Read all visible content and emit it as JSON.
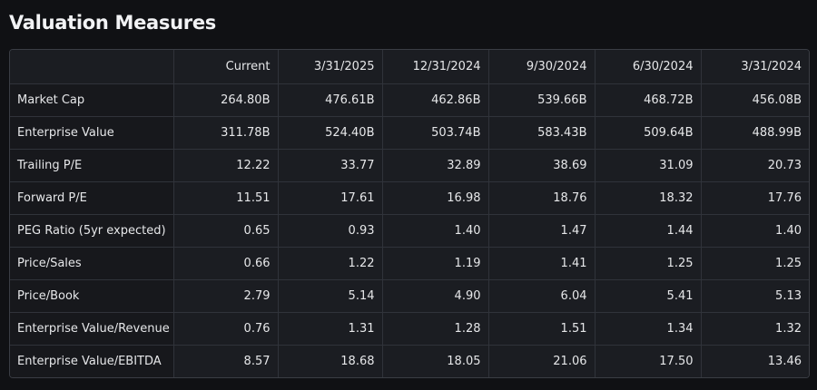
{
  "title": "Valuation Measures",
  "columns": [
    "Current",
    "3/31/2025",
    "12/31/2024",
    "9/30/2024",
    "6/30/2024",
    "3/31/2024"
  ],
  "rows": [
    {
      "label": "Market Cap",
      "values": [
        "264.80B",
        "476.61B",
        "462.86B",
        "539.66B",
        "468.72B",
        "456.08B"
      ]
    },
    {
      "label": "Enterprise Value",
      "values": [
        "311.78B",
        "524.40B",
        "503.74B",
        "583.43B",
        "509.64B",
        "488.99B"
      ]
    },
    {
      "label": "Trailing P/E",
      "values": [
        "12.22",
        "33.77",
        "32.89",
        "38.69",
        "31.09",
        "20.73"
      ]
    },
    {
      "label": "Forward P/E",
      "values": [
        "11.51",
        "17.61",
        "16.98",
        "18.76",
        "18.32",
        "17.76"
      ]
    },
    {
      "label": "PEG Ratio (5yr expected)",
      "values": [
        "0.65",
        "0.93",
        "1.40",
        "1.47",
        "1.44",
        "1.40"
      ]
    },
    {
      "label": "Price/Sales",
      "values": [
        "0.66",
        "1.22",
        "1.19",
        "1.41",
        "1.25",
        "1.25"
      ]
    },
    {
      "label": "Price/Book",
      "values": [
        "2.79",
        "5.14",
        "4.90",
        "6.04",
        "5.41",
        "5.13"
      ]
    },
    {
      "label": "Enterprise Value/Revenue",
      "values": [
        "0.76",
        "1.31",
        "1.28",
        "1.51",
        "1.34",
        "1.32"
      ]
    },
    {
      "label": "Enterprise Value/EBITDA",
      "values": [
        "8.57",
        "18.68",
        "18.05",
        "21.06",
        "17.50",
        "13.46"
      ]
    }
  ]
}
